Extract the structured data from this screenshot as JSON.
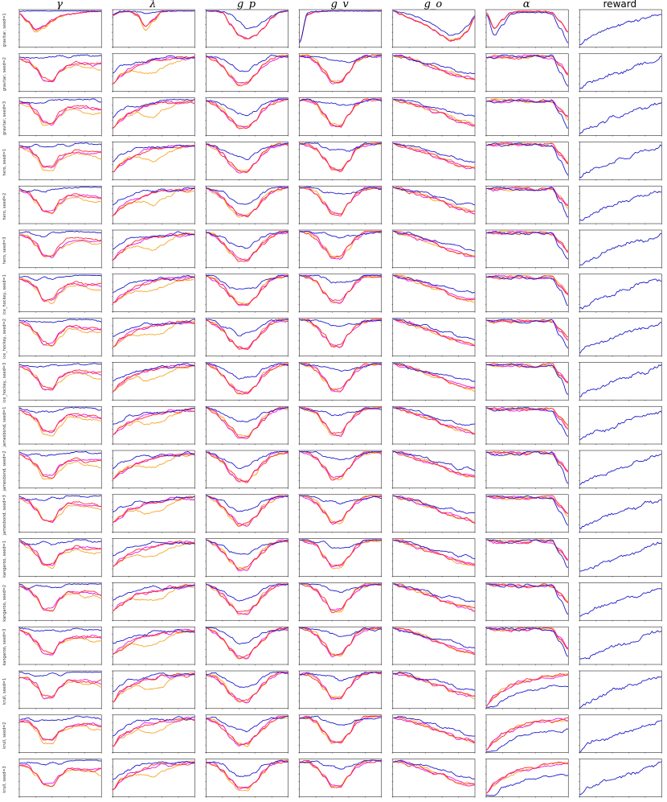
{
  "figure": {
    "columns": [
      "γ",
      "λ",
      "g_p",
      "g_v",
      "g_o",
      "α",
      "reward"
    ],
    "rows": [
      "gravitar, seed=1",
      "gravitar, seed=2",
      "gravitar, seed=3",
      "hero, seed=1",
      "hero, seed=2",
      "hero, seed=3",
      "ice_hockey, seed=1",
      "ice_hockey, seed=2",
      "ice_hockey, seed=3",
      "jamesbond, seed=1",
      "jamesbond, seed=2",
      "jamesbond, seed=3",
      "kangaroo, seed=1",
      "kangaroo, seed=2",
      "kangaroo, seed=3",
      "krull, seed=1",
      "krull, seed=2",
      "krull, seed=3"
    ],
    "series_colors": [
      "#1c1ccc",
      "#ff2a2a",
      "#e818e8",
      "#f5a623"
    ]
  },
  "chart_data": {
    "type": "line",
    "layout": "grid 18 rows x 7 columns of small line plots",
    "x": [
      0,
      0.1,
      0.2,
      0.3,
      0.4,
      0.5,
      0.6,
      0.7,
      0.8,
      0.9,
      1.0
    ],
    "note": "",
    "panels": [
      {
        "row": 0,
        "col": 0,
        "series": [
          {
            "values": [
              0.98,
              1.0,
              1.0,
              1.0,
              1.0,
              1.0,
              1.0,
              1.0,
              1.0,
              1.0,
              1.0
            ]
          },
          {
            "values": [
              0.92,
              0.7,
              0.45,
              0.55,
              0.72,
              0.85,
              0.9,
              0.93,
              0.96,
              0.98,
              0.99
            ]
          },
          {
            "values": [
              0.93,
              0.72,
              0.48,
              0.58,
              0.74,
              0.86,
              0.9,
              0.93,
              0.96,
              0.98,
              0.99
            ]
          },
          {
            "values": [
              0.92,
              0.68,
              0.4,
              0.5,
              0.7,
              0.84,
              0.9,
              0.93,
              0.96,
              0.98,
              0.99
            ]
          }
        ]
      },
      {
        "row": 0,
        "col": 1,
        "series": [
          {
            "values": [
              0.9,
              0.98,
              0.99,
              0.97,
              0.93,
              0.96,
              0.99,
              1.0,
              1.0,
              1.0,
              1.0
            ]
          },
          {
            "values": [
              0.88,
              0.97,
              0.98,
              0.9,
              0.55,
              0.75,
              0.97,
              0.99,
              1.0,
              1.0,
              1.0
            ]
          },
          {
            "values": [
              0.88,
              0.97,
              0.98,
              0.88,
              0.55,
              0.78,
              0.98,
              0.99,
              1.0,
              1.0,
              1.0
            ]
          },
          {
            "values": [
              0.88,
              0.97,
              0.98,
              0.85,
              0.45,
              0.7,
              0.97,
              0.99,
              1.0,
              1.0,
              1.0
            ]
          }
        ]
      },
      {
        "row": 0,
        "col": 2,
        "series": [
          {
            "values": [
              1.0,
              1.0,
              0.98,
              0.9,
              0.7,
              0.5,
              0.55,
              0.7,
              0.85,
              0.97,
              1.0
            ]
          },
          {
            "values": [
              1.0,
              0.99,
              0.95,
              0.6,
              0.3,
              0.2,
              0.3,
              0.5,
              0.8,
              0.96,
              1.0
            ]
          },
          {
            "values": [
              1.0,
              0.99,
              0.95,
              0.62,
              0.32,
              0.22,
              0.3,
              0.5,
              0.8,
              0.96,
              1.0
            ]
          },
          {
            "values": [
              1.0,
              0.99,
              0.95,
              0.6,
              0.3,
              0.2,
              0.3,
              0.5,
              0.8,
              0.96,
              1.0
            ]
          }
        ]
      },
      {
        "row": 0,
        "col": 3,
        "series": [
          {
            "values": [
              0.1,
              0.95,
              0.98,
              0.99,
              1.0,
              1.0,
              1.0,
              1.0,
              1.0,
              1.0,
              1.0
            ]
          },
          {
            "values": [
              0.1,
              0.9,
              0.97,
              0.99,
              1.0,
              1.0,
              1.0,
              1.0,
              1.0,
              1.0,
              1.0
            ]
          },
          {
            "values": [
              0.1,
              0.9,
              0.97,
              0.99,
              1.0,
              1.0,
              1.0,
              1.0,
              1.0,
              1.0,
              1.0
            ]
          },
          {
            "values": [
              0.1,
              0.9,
              0.97,
              0.99,
              1.0,
              1.0,
              1.0,
              1.0,
              1.0,
              1.0,
              1.0
            ]
          }
        ]
      },
      {
        "row": 0,
        "col": 4,
        "series": [
          {
            "values": [
              1.0,
              0.95,
              0.9,
              0.82,
              0.72,
              0.6,
              0.45,
              0.3,
              0.35,
              0.55,
              0.85
            ]
          },
          {
            "values": [
              1.0,
              0.9,
              0.8,
              0.7,
              0.6,
              0.45,
              0.3,
              0.15,
              0.2,
              0.4,
              0.8
            ]
          },
          {
            "values": [
              1.0,
              0.9,
              0.8,
              0.7,
              0.6,
              0.45,
              0.3,
              0.15,
              0.2,
              0.4,
              0.8
            ]
          },
          {
            "values": [
              1.0,
              0.9,
              0.8,
              0.7,
              0.6,
              0.45,
              0.3,
              0.18,
              0.22,
              0.42,
              0.82
            ]
          }
        ]
      },
      {
        "row": 0,
        "col": 5,
        "series": [
          {
            "values": [
              0.9,
              0.3,
              0.6,
              0.9,
              0.95,
              0.95,
              0.95,
              0.95,
              0.9,
              0.5,
              0.1
            ]
          },
          {
            "values": [
              0.95,
              0.5,
              0.75,
              0.95,
              0.98,
              0.98,
              0.98,
              0.98,
              0.95,
              0.7,
              0.4
            ]
          },
          {
            "values": [
              0.95,
              0.5,
              0.75,
              0.95,
              0.98,
              0.98,
              0.98,
              0.98,
              0.95,
              0.7,
              0.4
            ]
          },
          {
            "values": [
              0.95,
              0.5,
              0.75,
              0.95,
              0.98,
              0.98,
              0.98,
              0.98,
              0.95,
              0.7,
              0.4
            ]
          }
        ]
      },
      {
        "row": 0,
        "col": 6,
        "series": [
          {
            "values": [
              0.05,
              0.2,
              0.35,
              0.45,
              0.55,
              0.6,
              0.68,
              0.72,
              0.8,
              0.85,
              0.9
            ]
          }
        ]
      }
    ]
  }
}
